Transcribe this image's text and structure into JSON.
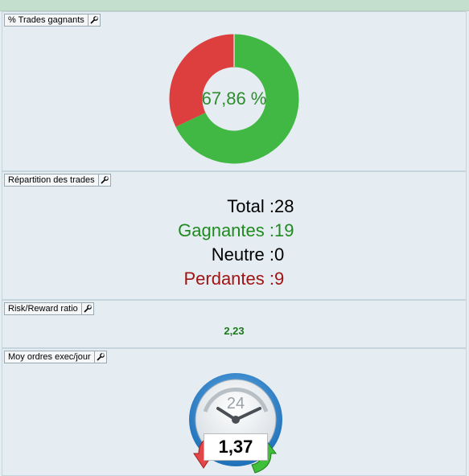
{
  "colors": {
    "win": "#40b843",
    "loss": "#dd3e3e",
    "win_text": "#1f8a1f",
    "loss_text": "#a01414"
  },
  "panels": {
    "win_rate": {
      "title": "% Trades gagnants",
      "label": "67,86 %",
      "win_fraction": 0.6786
    },
    "repartition": {
      "title": "Répartition des trades",
      "rows": [
        {
          "label": "Total",
          "value": "28"
        },
        {
          "label": "Gagnantes",
          "value": "19"
        },
        {
          "label": "Neutre",
          "value": "0"
        },
        {
          "label": "Perdantes",
          "value": "9"
        }
      ]
    },
    "risk_reward": {
      "title": "Risk/Reward ratio",
      "value": "2,23"
    },
    "orders": {
      "title": "Moy ordres exec/jour",
      "clock_label": "24",
      "value": "1,37"
    }
  },
  "icons": {
    "panel_tool": "wrench-icon"
  }
}
